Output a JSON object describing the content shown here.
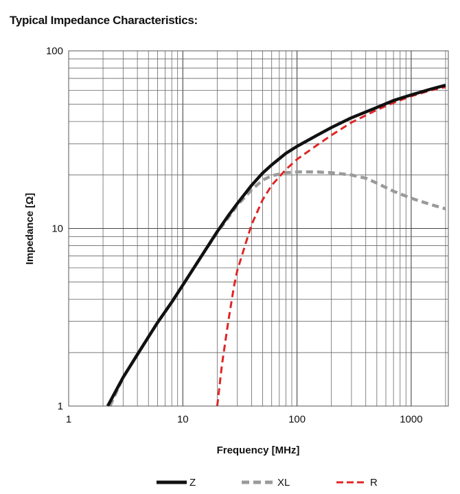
{
  "title": "Typical Impedance Characteristics:",
  "chart_data": {
    "type": "line",
    "xlabel": "Frequency [MHz]",
    "ylabel": "Impedance [Ω]",
    "xscale": "log",
    "yscale": "log",
    "xlim": [
      1,
      2000
    ],
    "ylim": [
      1,
      100
    ],
    "grid": true,
    "legend_position": "bottom",
    "x_ticks": [
      "1",
      "10",
      "100",
      "1000"
    ],
    "y_ticks": [
      "1",
      "10",
      "100"
    ],
    "series": [
      {
        "name": "Z",
        "color": "#111111",
        "style": "solid",
        "points": [
          [
            2.2,
            1.0
          ],
          [
            3,
            1.45
          ],
          [
            4,
            1.95
          ],
          [
            5,
            2.45
          ],
          [
            6,
            2.95
          ],
          [
            8,
            3.85
          ],
          [
            10,
            4.8
          ],
          [
            15,
            7.2
          ],
          [
            20,
            9.6
          ],
          [
            25,
            11.8
          ],
          [
            30,
            13.8
          ],
          [
            40,
            17.5
          ],
          [
            50,
            20.5
          ],
          [
            60,
            22.8
          ],
          [
            80,
            26.5
          ],
          [
            100,
            29.0
          ],
          [
            150,
            33.5
          ],
          [
            200,
            37.0
          ],
          [
            300,
            42.0
          ],
          [
            500,
            48.0
          ],
          [
            700,
            52.5
          ],
          [
            1000,
            56.5
          ],
          [
            1500,
            61.0
          ],
          [
            2000,
            64.0
          ]
        ]
      },
      {
        "name": "XL",
        "color": "#9a9a9a",
        "style": "dashed",
        "points": [
          [
            2.3,
            1.0
          ],
          [
            3,
            1.45
          ],
          [
            4,
            1.95
          ],
          [
            5,
            2.45
          ],
          [
            6,
            2.95
          ],
          [
            8,
            3.85
          ],
          [
            10,
            4.8
          ],
          [
            15,
            7.2
          ],
          [
            20,
            9.5
          ],
          [
            25,
            11.5
          ],
          [
            30,
            13.5
          ],
          [
            40,
            16.5
          ],
          [
            50,
            18.7
          ],
          [
            60,
            19.8
          ],
          [
            80,
            20.6
          ],
          [
            100,
            20.8
          ],
          [
            150,
            20.8
          ],
          [
            200,
            20.6
          ],
          [
            300,
            20.0
          ],
          [
            400,
            19.2
          ],
          [
            500,
            18.0
          ],
          [
            700,
            16.2
          ],
          [
            1000,
            14.8
          ],
          [
            1500,
            13.6
          ],
          [
            2000,
            12.9
          ]
        ]
      },
      {
        "name": "R",
        "color": "#e02424",
        "style": "dashed",
        "points": [
          [
            20,
            1.0
          ],
          [
            22,
            1.7
          ],
          [
            25,
            3.0
          ],
          [
            28,
            4.7
          ],
          [
            30,
            5.8
          ],
          [
            35,
            8.0
          ],
          [
            40,
            10.5
          ],
          [
            50,
            14.5
          ],
          [
            60,
            17.5
          ],
          [
            80,
            21.5
          ],
          [
            100,
            24.5
          ],
          [
            150,
            29.5
          ],
          [
            200,
            33.5
          ],
          [
            300,
            39.5
          ],
          [
            500,
            46.5
          ],
          [
            700,
            51.0
          ],
          [
            1000,
            55.5
          ],
          [
            1500,
            60.0
          ],
          [
            2000,
            62.5
          ]
        ]
      }
    ]
  }
}
